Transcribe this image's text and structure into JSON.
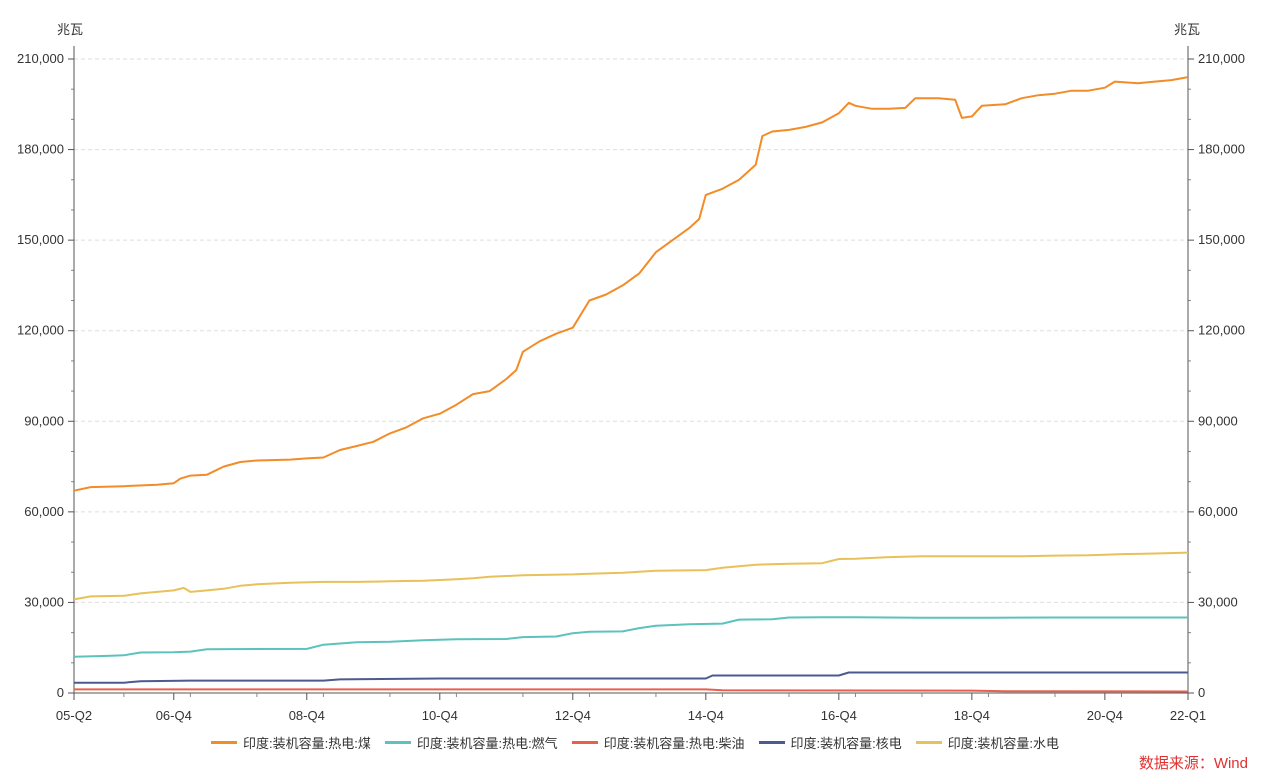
{
  "chart_data": {
    "type": "line",
    "y_unit_left": "兆瓦",
    "y_unit_right": "兆瓦",
    "ylim": [
      0,
      210000
    ],
    "y_ticks": [
      0,
      30000,
      60000,
      90000,
      120000,
      150000,
      180000,
      210000
    ],
    "y_tick_labels": [
      "0",
      "30,000",
      "60,000",
      "90,000",
      "120,000",
      "150,000",
      "180,000",
      "210,000"
    ],
    "x_start": 2005.25,
    "x_end": 2022.0,
    "x_tick_labels": [
      {
        "label": "05-Q2",
        "t": 2005.25
      },
      {
        "label": "06-Q4",
        "t": 2006.75
      },
      {
        "label": "08-Q4",
        "t": 2008.75
      },
      {
        "label": "10-Q4",
        "t": 2010.75
      },
      {
        "label": "12-Q4",
        "t": 2012.75
      },
      {
        "label": "14-Q4",
        "t": 2014.75
      },
      {
        "label": "16-Q4",
        "t": 2016.75
      },
      {
        "label": "18-Q4",
        "t": 2018.75
      },
      {
        "label": "20-Q4",
        "t": 2020.75
      },
      {
        "label": "22-Q1",
        "t": 2022.0
      }
    ],
    "grid": true,
    "legend_position": "bottom",
    "series": [
      {
        "name": "印度:装机容量:热电:煤",
        "color": "#F28C28",
        "points": [
          [
            2005.25,
            67000
          ],
          [
            2005.5,
            68200
          ],
          [
            2006.0,
            68500
          ],
          [
            2006.5,
            69000
          ],
          [
            2006.75,
            69500
          ],
          [
            2006.85,
            71000
          ],
          [
            2007.0,
            72000
          ],
          [
            2007.25,
            72300
          ],
          [
            2007.5,
            75000
          ],
          [
            2007.75,
            76500
          ],
          [
            2008.0,
            77000
          ],
          [
            2008.5,
            77300
          ],
          [
            2008.75,
            77700
          ],
          [
            2009.0,
            78000
          ],
          [
            2009.25,
            80500
          ],
          [
            2009.5,
            81800
          ],
          [
            2009.75,
            83200
          ],
          [
            2010.0,
            86000
          ],
          [
            2010.25,
            88000
          ],
          [
            2010.5,
            91000
          ],
          [
            2010.75,
            92500
          ],
          [
            2011.0,
            95500
          ],
          [
            2011.25,
            99000
          ],
          [
            2011.5,
            100000
          ],
          [
            2011.75,
            104000
          ],
          [
            2011.9,
            107000
          ],
          [
            2012.0,
            113000
          ],
          [
            2012.25,
            116500
          ],
          [
            2012.5,
            119000
          ],
          [
            2012.75,
            121000
          ],
          [
            2013.0,
            130000
          ],
          [
            2013.25,
            132000
          ],
          [
            2013.5,
            135000
          ],
          [
            2013.75,
            139000
          ],
          [
            2014.0,
            146000
          ],
          [
            2014.25,
            150000
          ],
          [
            2014.5,
            154000
          ],
          [
            2014.65,
            157000
          ],
          [
            2014.75,
            165000
          ],
          [
            2015.0,
            167000
          ],
          [
            2015.25,
            170000
          ],
          [
            2015.5,
            175000
          ],
          [
            2015.6,
            184500
          ],
          [
            2015.75,
            186000
          ],
          [
            2016.0,
            186500
          ],
          [
            2016.25,
            187500
          ],
          [
            2016.5,
            189000
          ],
          [
            2016.75,
            192000
          ],
          [
            2016.9,
            195500
          ],
          [
            2017.0,
            194500
          ],
          [
            2017.25,
            193500
          ],
          [
            2017.5,
            193500
          ],
          [
            2017.75,
            193800
          ],
          [
            2017.9,
            197000
          ],
          [
            2018.25,
            197000
          ],
          [
            2018.5,
            196500
          ],
          [
            2018.6,
            190500
          ],
          [
            2018.75,
            191000
          ],
          [
            2018.9,
            194500
          ],
          [
            2019.25,
            195000
          ],
          [
            2019.5,
            197000
          ],
          [
            2019.75,
            198000
          ],
          [
            2020.0,
            198500
          ],
          [
            2020.25,
            199500
          ],
          [
            2020.5,
            199500
          ],
          [
            2020.75,
            200500
          ],
          [
            2020.9,
            202500
          ],
          [
            2021.25,
            202000
          ],
          [
            2021.5,
            202500
          ],
          [
            2021.75,
            203000
          ],
          [
            2022.0,
            204000
          ]
        ]
      },
      {
        "name": "印度:装机容量:热电:燃气",
        "color": "#5BC2BE",
        "points": [
          [
            2005.25,
            12000
          ],
          [
            2005.75,
            12300
          ],
          [
            2006.0,
            12500
          ],
          [
            2006.25,
            13400
          ],
          [
            2006.75,
            13500
          ],
          [
            2007.0,
            13700
          ],
          [
            2007.25,
            14500
          ],
          [
            2008.75,
            14600
          ],
          [
            2009.0,
            16000
          ],
          [
            2009.5,
            16800
          ],
          [
            2010.0,
            17000
          ],
          [
            2010.5,
            17500
          ],
          [
            2011.0,
            17800
          ],
          [
            2011.75,
            17900
          ],
          [
            2012.0,
            18500
          ],
          [
            2012.5,
            18700
          ],
          [
            2012.75,
            19800
          ],
          [
            2013.0,
            20300
          ],
          [
            2013.5,
            20400
          ],
          [
            2013.75,
            21500
          ],
          [
            2014.0,
            22300
          ],
          [
            2014.5,
            22800
          ],
          [
            2015.0,
            23000
          ],
          [
            2015.25,
            24300
          ],
          [
            2015.75,
            24400
          ],
          [
            2016.0,
            25000
          ],
          [
            2016.5,
            25100
          ],
          [
            2017.0,
            25100
          ],
          [
            2017.5,
            25000
          ],
          [
            2018.0,
            24900
          ],
          [
            2019.0,
            24900
          ],
          [
            2020.0,
            25000
          ],
          [
            2021.0,
            25000
          ],
          [
            2022.0,
            25000
          ]
        ]
      },
      {
        "name": "印度:装机容量:热电:柴油",
        "color": "#E8604C",
        "points": [
          [
            2005.25,
            1200
          ],
          [
            2010.0,
            1200
          ],
          [
            2014.75,
            1200
          ],
          [
            2015.0,
            900
          ],
          [
            2018.75,
            800
          ],
          [
            2019.25,
            600
          ],
          [
            2022.0,
            500
          ]
        ]
      },
      {
        "name": "印度:装机容量:核电",
        "color": "#4B5A8F",
        "points": [
          [
            2005.25,
            3400
          ],
          [
            2006.0,
            3400
          ],
          [
            2006.25,
            3900
          ],
          [
            2007.0,
            4100
          ],
          [
            2009.0,
            4100
          ],
          [
            2009.25,
            4500
          ],
          [
            2010.75,
            4800
          ],
          [
            2014.75,
            4800
          ],
          [
            2014.85,
            5800
          ],
          [
            2016.75,
            5800
          ],
          [
            2016.9,
            6800
          ],
          [
            2022.0,
            6800
          ]
        ]
      },
      {
        "name": "印度:装机容量:水电",
        "color": "#E8C15A",
        "points": [
          [
            2005.25,
            31000
          ],
          [
            2005.5,
            32000
          ],
          [
            2006.0,
            32200
          ],
          [
            2006.25,
            33000
          ],
          [
            2006.5,
            33500
          ],
          [
            2006.75,
            34000
          ],
          [
            2006.9,
            34800
          ],
          [
            2007.0,
            33500
          ],
          [
            2007.25,
            34000
          ],
          [
            2007.5,
            34500
          ],
          [
            2007.75,
            35500
          ],
          [
            2008.0,
            36000
          ],
          [
            2008.5,
            36500
          ],
          [
            2009.0,
            36800
          ],
          [
            2009.5,
            36800
          ],
          [
            2010.0,
            37000
          ],
          [
            2010.5,
            37200
          ],
          [
            2011.0,
            37700
          ],
          [
            2011.25,
            38000
          ],
          [
            2011.5,
            38500
          ],
          [
            2012.0,
            39000
          ],
          [
            2012.75,
            39300
          ],
          [
            2013.0,
            39500
          ],
          [
            2013.5,
            39800
          ],
          [
            2014.0,
            40500
          ],
          [
            2014.75,
            40700
          ],
          [
            2015.0,
            41500
          ],
          [
            2015.5,
            42500
          ],
          [
            2016.0,
            42800
          ],
          [
            2016.5,
            43000
          ],
          [
            2016.75,
            44400
          ],
          [
            2017.0,
            44500
          ],
          [
            2017.5,
            45000
          ],
          [
            2018.0,
            45300
          ],
          [
            2018.5,
            45300
          ],
          [
            2019.0,
            45300
          ],
          [
            2019.5,
            45300
          ],
          [
            2020.0,
            45500
          ],
          [
            2020.5,
            45600
          ],
          [
            2020.75,
            45800
          ],
          [
            2021.0,
            46000
          ],
          [
            2021.5,
            46200
          ],
          [
            2022.0,
            46500
          ]
        ]
      }
    ]
  },
  "source_text": "数据来源：Wind"
}
